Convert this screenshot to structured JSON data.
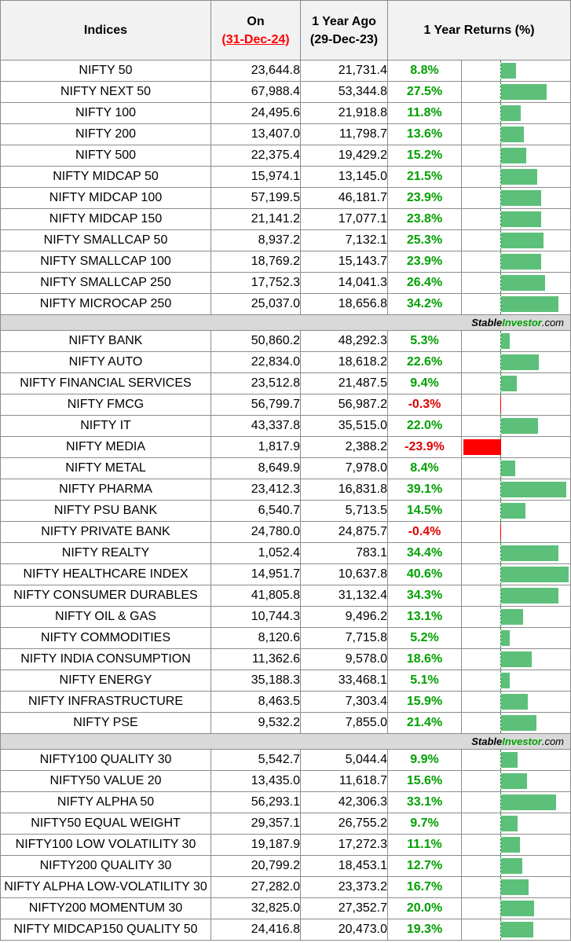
{
  "header": {
    "indices": "Indices",
    "on_line1": "On",
    "on_line2": "(31-Dec-24)",
    "ago_line1": "1 Year Ago",
    "ago_line2": "(29-Dec-23)",
    "returns": "1 Year Returns (%)"
  },
  "brand": {
    "part1": "Stable",
    "part2": "Investor",
    "part3": ".com"
  },
  "colors": {
    "positive_bar": "#5dc07a",
    "negative_bar": "#ff0000",
    "positive_text": "#00a000",
    "negative_text": "#e00000"
  },
  "groups": [
    {
      "rows": [
        {
          "name": "NIFTY 50",
          "on": "23,644.8",
          "ago": "21,731.4",
          "ret": "8.8%",
          "value": 8.8
        },
        {
          "name": "NIFTY NEXT 50",
          "on": "67,988.4",
          "ago": "53,344.8",
          "ret": "27.5%",
          "value": 27.5
        },
        {
          "name": "NIFTY 100",
          "on": "24,495.6",
          "ago": "21,918.8",
          "ret": "11.8%",
          "value": 11.8
        },
        {
          "name": "NIFTY 200",
          "on": "13,407.0",
          "ago": "11,798.7",
          "ret": "13.6%",
          "value": 13.6
        },
        {
          "name": "NIFTY 500",
          "on": "22,375.4",
          "ago": "19,429.2",
          "ret": "15.2%",
          "value": 15.2
        },
        {
          "name": "NIFTY MIDCAP 50",
          "on": "15,974.1",
          "ago": "13,145.0",
          "ret": "21.5%",
          "value": 21.5
        },
        {
          "name": "NIFTY MIDCAP 100",
          "on": "57,199.5",
          "ago": "46,181.7",
          "ret": "23.9%",
          "value": 23.9
        },
        {
          "name": "NIFTY MIDCAP 150",
          "on": "21,141.2",
          "ago": "17,077.1",
          "ret": "23.8%",
          "value": 23.8
        },
        {
          "name": "NIFTY SMALLCAP 50",
          "on": "8,937.2",
          "ago": "7,132.1",
          "ret": "25.3%",
          "value": 25.3
        },
        {
          "name": "NIFTY SMALLCAP 100",
          "on": "18,769.2",
          "ago": "15,143.7",
          "ret": "23.9%",
          "value": 23.9
        },
        {
          "name": "NIFTY SMALLCAP 250",
          "on": "17,752.3",
          "ago": "14,041.3",
          "ret": "26.4%",
          "value": 26.4
        },
        {
          "name": "NIFTY MICROCAP 250",
          "on": "25,037.0",
          "ago": "18,656.8",
          "ret": "34.2%",
          "value": 34.2
        }
      ]
    },
    {
      "rows": [
        {
          "name": "NIFTY BANK",
          "on": "50,860.2",
          "ago": "48,292.3",
          "ret": "5.3%",
          "value": 5.3
        },
        {
          "name": "NIFTY AUTO",
          "on": "22,834.0",
          "ago": "18,618.2",
          "ret": "22.6%",
          "value": 22.6
        },
        {
          "name": "NIFTY FINANCIAL SERVICES",
          "on": "23,512.8",
          "ago": "21,487.5",
          "ret": "9.4%",
          "value": 9.4
        },
        {
          "name": "NIFTY FMCG",
          "on": "56,799.7",
          "ago": "56,987.2",
          "ret": "-0.3%",
          "value": -0.3
        },
        {
          "name": "NIFTY IT",
          "on": "43,337.8",
          "ago": "35,515.0",
          "ret": "22.0%",
          "value": 22.0
        },
        {
          "name": "NIFTY MEDIA",
          "on": "1,817.9",
          "ago": "2,388.2",
          "ret": "-23.9%",
          "value": -23.9
        },
        {
          "name": "NIFTY METAL",
          "on": "8,649.9",
          "ago": "7,978.0",
          "ret": "8.4%",
          "value": 8.4
        },
        {
          "name": "NIFTY PHARMA",
          "on": "23,412.3",
          "ago": "16,831.8",
          "ret": "39.1%",
          "value": 39.1
        },
        {
          "name": "NIFTY PSU BANK",
          "on": "6,540.7",
          "ago": "5,713.5",
          "ret": "14.5%",
          "value": 14.5
        },
        {
          "name": "NIFTY PRIVATE BANK",
          "on": "24,780.0",
          "ago": "24,875.7",
          "ret": "-0.4%",
          "value": -0.4
        },
        {
          "name": "NIFTY REALTY",
          "on": "1,052.4",
          "ago": "783.1",
          "ret": "34.4%",
          "value": 34.4
        },
        {
          "name": "NIFTY HEALTHCARE INDEX",
          "on": "14,951.7",
          "ago": "10,637.8",
          "ret": "40.6%",
          "value": 40.6
        },
        {
          "name": "NIFTY CONSUMER DURABLES",
          "on": "41,805.8",
          "ago": "31,132.4",
          "ret": "34.3%",
          "value": 34.3
        },
        {
          "name": "NIFTY OIL & GAS",
          "on": "10,744.3",
          "ago": "9,496.2",
          "ret": "13.1%",
          "value": 13.1
        },
        {
          "name": "NIFTY COMMODITIES",
          "on": "8,120.6",
          "ago": "7,715.8",
          "ret": "5.2%",
          "value": 5.2
        },
        {
          "name": "NIFTY INDIA CONSUMPTION",
          "on": "11,362.6",
          "ago": "9,578.0",
          "ret": "18.6%",
          "value": 18.6
        },
        {
          "name": "NIFTY ENERGY",
          "on": "35,188.3",
          "ago": "33,468.1",
          "ret": "5.1%",
          "value": 5.1
        },
        {
          "name": "NIFTY INFRASTRUCTURE",
          "on": "8,463.5",
          "ago": "7,303.4",
          "ret": "15.9%",
          "value": 15.9
        },
        {
          "name": "NIFTY PSE",
          "on": "9,532.2",
          "ago": "7,855.0",
          "ret": "21.4%",
          "value": 21.4
        }
      ]
    },
    {
      "rows": [
        {
          "name": "NIFTY100 QUALITY 30",
          "on": "5,542.7",
          "ago": "5,044.4",
          "ret": "9.9%",
          "value": 9.9
        },
        {
          "name": "NIFTY50 VALUE 20",
          "on": "13,435.0",
          "ago": "11,618.7",
          "ret": "15.6%",
          "value": 15.6
        },
        {
          "name": "NIFTY ALPHA 50",
          "on": "56,293.1",
          "ago": "42,306.3",
          "ret": "33.1%",
          "value": 33.1
        },
        {
          "name": "NIFTY50 EQUAL WEIGHT",
          "on": "29,357.1",
          "ago": "26,755.2",
          "ret": "9.7%",
          "value": 9.7
        },
        {
          "name": "NIFTY100 LOW VOLATILITY 30",
          "on": "19,187.9",
          "ago": "17,272.3",
          "ret": "11.1%",
          "value": 11.1
        },
        {
          "name": "NIFTY200 QUALITY 30",
          "on": "20,799.2",
          "ago": "18,453.1",
          "ret": "12.7%",
          "value": 12.7
        },
        {
          "name": "NIFTY ALPHA LOW-VOLATILITY 30",
          "on": "27,282.0",
          "ago": "23,373.2",
          "ret": "16.7%",
          "value": 16.7
        },
        {
          "name": "NIFTY200 MOMENTUM 30",
          "on": "32,825.0",
          "ago": "27,352.7",
          "ret": "20.0%",
          "value": 20.0
        },
        {
          "name": "NIFTY MIDCAP150 QUALITY 50",
          "on": "24,416.8",
          "ago": "20,473.0",
          "ret": "19.3%",
          "value": 19.3
        }
      ]
    }
  ]
}
